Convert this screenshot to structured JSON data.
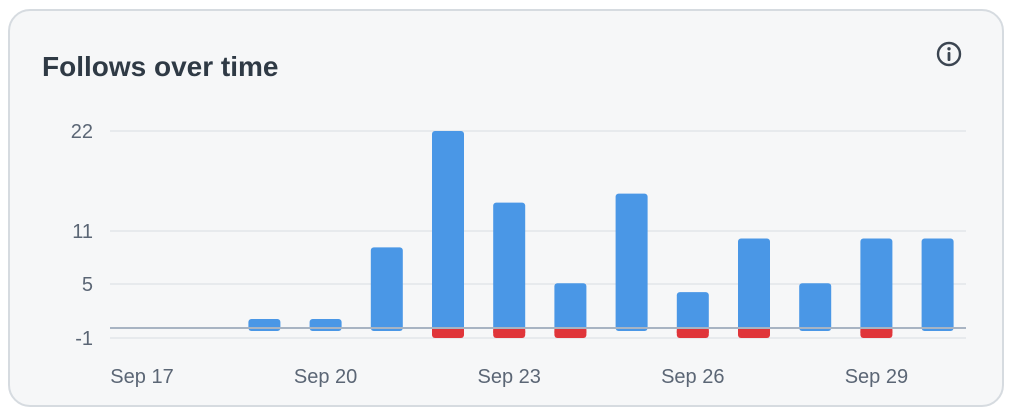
{
  "card": {
    "title": "Follows over time",
    "info_icon": "info-circle-icon"
  },
  "colors": {
    "gain": "#4a97e6",
    "loss": "#e0353a",
    "grid": "#e2e5e9",
    "baseline": "#a8b4c3",
    "tick_text": "#5b6675"
  },
  "chart_data": {
    "type": "bar",
    "title": "Follows over time",
    "xlabel": "",
    "ylabel": "",
    "categories": [
      "Sep 17",
      "Sep 18",
      "Sep 19",
      "Sep 20",
      "Sep 21",
      "Sep 22",
      "Sep 23",
      "Sep 24",
      "Sep 25",
      "Sep 26",
      "Sep 27",
      "Sep 28",
      "Sep 29",
      "Sep 30"
    ],
    "x_tick_labels": [
      "Sep 17",
      "Sep 20",
      "Sep 23",
      "Sep 26",
      "Sep 29"
    ],
    "y_ticks": [
      -1,
      5,
      11,
      22
    ],
    "ylim": [
      -1,
      22
    ],
    "grid": true,
    "series": [
      {
        "values": [
          0,
          0,
          1,
          1,
          9,
          22,
          14,
          5,
          15,
          4,
          10,
          5,
          10,
          10
        ]
      },
      {
        "values": [
          0,
          0,
          0,
          0,
          0,
          -1,
          -1,
          -1,
          0,
          -1,
          -1,
          0,
          -1,
          0
        ]
      }
    ]
  }
}
